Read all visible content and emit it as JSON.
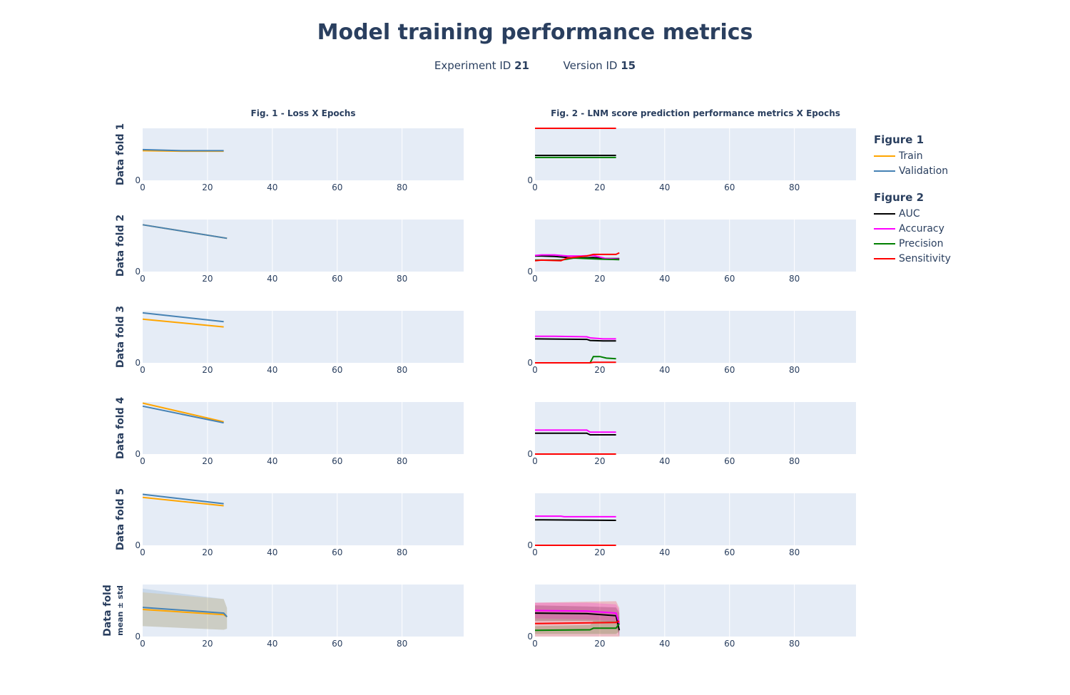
{
  "title": "Model training performance metrics",
  "subtitle": {
    "experiment_label": "Experiment ID",
    "experiment_id": "21",
    "version_label": "Version ID",
    "version_id": "15"
  },
  "legend": {
    "figure1_title": "Figure 1",
    "figure1_items": [
      {
        "label": "Train",
        "color": "#ffa500"
      },
      {
        "label": "Validation",
        "color": "#4682b4"
      }
    ],
    "figure2_title": "Figure 2",
    "figure2_items": [
      {
        "label": "AUC",
        "color": "#000000"
      },
      {
        "label": "Accuracy",
        "color": "#ff00ff"
      },
      {
        "label": "Precision",
        "color": "#008000"
      },
      {
        "label": "Sensitivity",
        "color": "#ff0000"
      }
    ]
  },
  "chart_data": {
    "type": "line",
    "column_titles": [
      "Fig. 1 - Loss X Epochs",
      "Fig. 2 - LNM score prediction performance metrics X Epochs"
    ],
    "row_labels": [
      "Data fold 1",
      "Data fold 2",
      "Data fold 3",
      "Data fold 4",
      "Data fold 5",
      "Data fold"
    ],
    "row_sublabels": [
      "",
      "",
      "",
      "",
      "",
      "mean ± std"
    ],
    "x_ticks": [
      0,
      20,
      40,
      60,
      80
    ],
    "xlim": [
      0,
      99
    ],
    "y_tick": 0,
    "loss_ylim": [
      0,
      1
    ],
    "metrics_ylim": [
      0,
      1
    ],
    "grid": true,
    "legend_position": "right",
    "loss": [
      {
        "fold": "Data fold 1",
        "series": [
          {
            "name": "Train",
            "x": [
              0,
              12,
              25
            ],
            "y": [
              0.57,
              0.56,
              0.56
            ]
          },
          {
            "name": "Validation",
            "x": [
              0,
              12,
              25
            ],
            "y": [
              0.59,
              0.57,
              0.57
            ]
          }
        ]
      },
      {
        "fold": "Data fold 2",
        "series": [
          {
            "name": "Train",
            "x": [
              0,
              26
            ],
            "y": [
              0.9,
              0.64
            ]
          },
          {
            "name": "Validation",
            "x": [
              0,
              26
            ],
            "y": [
              0.9,
              0.64
            ]
          }
        ]
      },
      {
        "fold": "Data fold 3",
        "series": [
          {
            "name": "Train",
            "x": [
              0,
              25
            ],
            "y": [
              0.84,
              0.69
            ]
          },
          {
            "name": "Validation",
            "x": [
              0,
              25
            ],
            "y": [
              0.96,
              0.79
            ]
          }
        ]
      },
      {
        "fold": "Data fold 4",
        "series": [
          {
            "name": "Train",
            "x": [
              0,
              25
            ],
            "y": [
              0.98,
              0.62
            ]
          },
          {
            "name": "Validation",
            "x": [
              0,
              25
            ],
            "y": [
              0.92,
              0.6
            ]
          }
        ]
      },
      {
        "fold": "Data fold 5",
        "series": [
          {
            "name": "Train",
            "x": [
              0,
              25
            ],
            "y": [
              0.92,
              0.76
            ]
          },
          {
            "name": "Validation",
            "x": [
              0,
              25
            ],
            "y": [
              0.98,
              0.8
            ]
          }
        ]
      },
      {
        "fold": "Data fold",
        "series": [
          {
            "name": "Train",
            "x": [
              0,
              25,
              26
            ],
            "y": [
              0.52,
              0.42,
              0.38
            ],
            "upper": [
              0.85,
              0.72,
              0.55
            ],
            "lower": [
              0.2,
              0.13,
              0.15
            ]
          },
          {
            "name": "Validation",
            "x": [
              0,
              25,
              26
            ],
            "y": [
              0.56,
              0.45,
              0.38
            ],
            "upper": [
              0.92,
              0.72,
              0.55
            ],
            "lower": [
              0.2,
              0.13,
              0.15
            ]
          }
        ]
      }
    ],
    "metrics": [
      {
        "fold": "Data fold 1",
        "series": [
          {
            "name": "AUC",
            "x": [
              0,
              25
            ],
            "y": [
              0.48,
              0.48
            ]
          },
          {
            "name": "Precision",
            "x": [
              0,
              25
            ],
            "y": [
              0.44,
              0.44
            ]
          },
          {
            "name": "Sensitivity",
            "x": [
              0,
              25
            ],
            "y": [
              1.0,
              1.0
            ]
          }
        ]
      },
      {
        "fold": "Data fold 2",
        "series": [
          {
            "name": "AUC",
            "x": [
              0,
              2,
              6,
              10,
              14,
              18,
              22,
              26
            ],
            "y": [
              0.3,
              0.3,
              0.29,
              0.27,
              0.26,
              0.27,
              0.25,
              0.25
            ]
          },
          {
            "name": "Accuracy",
            "x": [
              0,
              2,
              6,
              10,
              14,
              18,
              22,
              26
            ],
            "y": [
              0.31,
              0.32,
              0.32,
              0.3,
              0.3,
              0.31,
              0.25,
              0.24
            ]
          },
          {
            "name": "Precision",
            "x": [
              0,
              2,
              8,
              12,
              16,
              20,
              26
            ],
            "y": [
              0.22,
              0.22,
              0.22,
              0.26,
              0.25,
              0.24,
              0.23
            ]
          },
          {
            "name": "Sensitivity",
            "x": [
              0,
              2,
              8,
              10,
              16,
              18,
              25,
              26
            ],
            "y": [
              0.21,
              0.22,
              0.21,
              0.26,
              0.3,
              0.33,
              0.33,
              0.36
            ]
          }
        ]
      },
      {
        "fold": "Data fold 3",
        "series": [
          {
            "name": "AUC",
            "x": [
              0,
              16,
              17,
              21,
              25
            ],
            "y": [
              0.46,
              0.45,
              0.43,
              0.42,
              0.42
            ]
          },
          {
            "name": "Accuracy",
            "x": [
              0,
              6,
              16,
              17,
              21,
              25
            ],
            "y": [
              0.51,
              0.51,
              0.5,
              0.48,
              0.46,
              0.46
            ]
          },
          {
            "name": "Precision",
            "x": [
              0,
              17,
              18,
              20,
              22,
              25
            ],
            "y": [
              0.0,
              0.0,
              0.12,
              0.12,
              0.09,
              0.08
            ]
          },
          {
            "name": "Sensitivity",
            "x": [
              0,
              17,
              18,
              25
            ],
            "y": [
              0.0,
              0.0,
              0.01,
              0.01
            ]
          }
        ]
      },
      {
        "fold": "Data fold 4",
        "series": [
          {
            "name": "AUC",
            "x": [
              0,
              16,
              17,
              25
            ],
            "y": [
              0.4,
              0.4,
              0.37,
              0.37
            ]
          },
          {
            "name": "Accuracy",
            "x": [
              0,
              16,
              17,
              25
            ],
            "y": [
              0.46,
              0.46,
              0.42,
              0.42
            ]
          },
          {
            "name": "Sensitivity",
            "x": [
              0,
              25
            ],
            "y": [
              0.0,
              0.0
            ]
          }
        ]
      },
      {
        "fold": "Data fold 5",
        "series": [
          {
            "name": "AUC",
            "x": [
              0,
              25
            ],
            "y": [
              0.49,
              0.48
            ]
          },
          {
            "name": "Accuracy",
            "x": [
              0,
              8,
              9,
              25
            ],
            "y": [
              0.56,
              0.56,
              0.55,
              0.55
            ]
          },
          {
            "name": "Sensitivity",
            "x": [
              0,
              25
            ],
            "y": [
              0.0,
              0.0
            ]
          }
        ]
      },
      {
        "fold": "Data fold",
        "series": [
          {
            "name": "AUC",
            "x": [
              0,
              16,
              25,
              26
            ],
            "y": [
              0.45,
              0.44,
              0.4,
              0.12
            ],
            "upper": [
              0.6,
              0.58,
              0.56,
              0.45
            ],
            "lower": [
              0.3,
              0.3,
              0.28,
              0.0
            ]
          },
          {
            "name": "Accuracy",
            "x": [
              0,
              16,
              25,
              26
            ],
            "y": [
              0.5,
              0.49,
              0.45,
              0.25
            ],
            "upper": [
              0.65,
              0.65,
              0.62,
              0.5
            ],
            "lower": [
              0.35,
              0.33,
              0.3,
              0.0
            ]
          },
          {
            "name": "Precision",
            "x": [
              0,
              17,
              18,
              25,
              26
            ],
            "y": [
              0.12,
              0.13,
              0.16,
              0.16,
              0.25
            ],
            "upper": [
              0.2,
              0.22,
              0.3,
              0.3,
              0.4
            ],
            "lower": [
              0.05,
              0.05,
              0.05,
              0.05,
              0.1
            ]
          },
          {
            "name": "Sensitivity",
            "x": [
              0,
              25,
              26
            ],
            "y": [
              0.25,
              0.27,
              0.3
            ],
            "upper": [
              0.65,
              0.68,
              0.55
            ],
            "lower": [
              0.0,
              0.0,
              0.0
            ]
          }
        ]
      }
    ]
  }
}
